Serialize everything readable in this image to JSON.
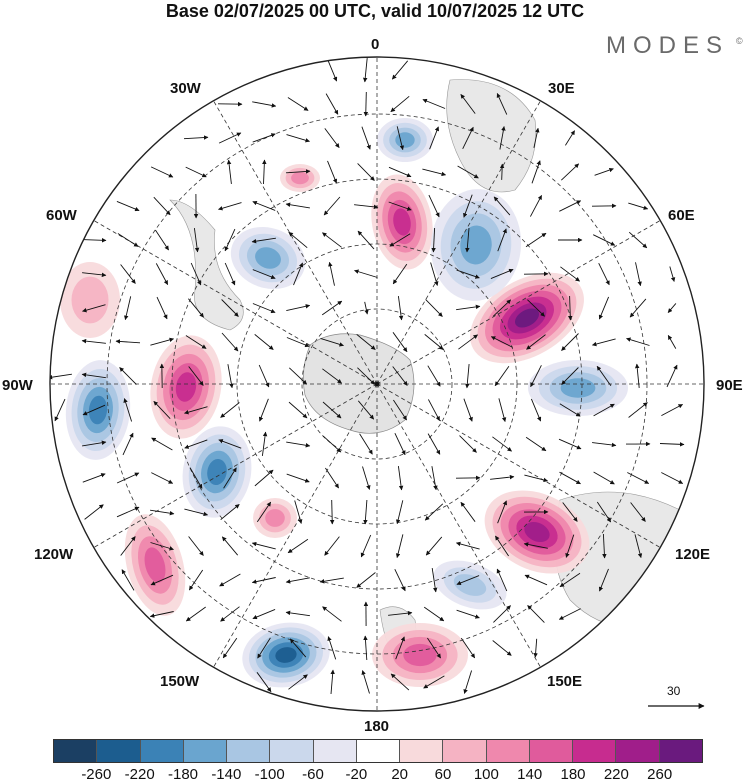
{
  "title": "Base 02/07/2025 00 UTC, valid 10/07/2025 12 UTC",
  "brand": "MODES",
  "brand_mark": "©",
  "longitude_labels": {
    "top": "0",
    "lon_30e": "30E",
    "lon_60e": "60E",
    "lon_90e": "90E",
    "lon_120e": "120E",
    "lon_150e": "150E",
    "bottom": "180",
    "lon_150w": "150W",
    "lon_120w": "120W",
    "lon_90w": "90W",
    "lon_60w": "60W",
    "lon_30w": "30W"
  },
  "wind_reference": "30",
  "legend": {
    "colors": [
      "#1b3f63",
      "#1c5d8f",
      "#3b82b6",
      "#6aa5cf",
      "#a9c6e3",
      "#cbd8ec",
      "#e6e6f2",
      "#ffffff",
      "#f8dadc",
      "#f5b3c3",
      "#ef88ad",
      "#e05b9c",
      "#c72c8f",
      "#a01e8a",
      "#6a1a7e"
    ],
    "ticks": [
      "-260",
      "-220",
      "-180",
      "-140",
      "-100",
      "-60",
      "-20",
      "20",
      "60",
      "100",
      "140",
      "180",
      "220",
      "260"
    ]
  },
  "anomalies": [
    {
      "kind": "negative",
      "value": -150
    },
    {
      "kind": "negative",
      "value": -210
    },
    {
      "kind": "positive",
      "value": 200
    },
    {
      "kind": "positive",
      "value": 260
    },
    {
      "kind": "negative",
      "value": -170
    },
    {
      "kind": "positive",
      "value": 220
    },
    {
      "kind": "negative",
      "value": -160
    },
    {
      "kind": "positive",
      "value": 180
    },
    {
      "kind": "negative",
      "value": -200
    },
    {
      "kind": "positive",
      "value": 100
    },
    {
      "kind": "negative",
      "value": -220
    },
    {
      "kind": "positive",
      "value": 140
    },
    {
      "kind": "negative",
      "value": -170
    },
    {
      "kind": "positive",
      "value": 150
    },
    {
      "kind": "negative",
      "value": -120
    },
    {
      "kind": "positive",
      "value": 110
    },
    {
      "kind": "positive",
      "value": 60
    }
  ]
}
